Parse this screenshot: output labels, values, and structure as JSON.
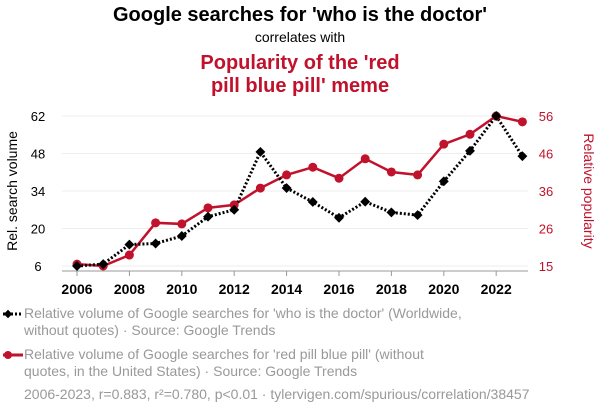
{
  "chart_data": {
    "type": "line",
    "title": "Google searches for 'who is the doctor'",
    "subtitle": "correlates with",
    "title2": [
      "Popularity of the 'red",
      "pill blue pill' meme"
    ],
    "x": [
      2006,
      2007,
      2008,
      2009,
      2010,
      2011,
      2012,
      2013,
      2014,
      2015,
      2016,
      2017,
      2018,
      2019,
      2020,
      2021,
      2022,
      2023
    ],
    "xticks": [
      "2006",
      "2008",
      "2010",
      "2012",
      "2014",
      "2016",
      "2018",
      "2020",
      "2022"
    ],
    "ylabel": "Rel. search volume",
    "y2label": "Relative popularity",
    "yticks": [
      "6",
      "20",
      "34",
      "48",
      "62"
    ],
    "y2ticks": [
      "15",
      "26",
      "36",
      "46",
      "56"
    ],
    "ylim": [
      6,
      62
    ],
    "y2lim": [
      15,
      56
    ],
    "grid": true,
    "series": [
      {
        "name": "Relative volume of Google searches for 'who is the doctor' (Worldwide, without quotes) · Source: Google Trends",
        "axis": "left",
        "color": "#000000",
        "values": [
          6,
          6.7,
          14,
          14.4,
          17.2,
          24.4,
          27,
          48.6,
          35.1,
          29.9,
          24,
          30,
          26,
          25,
          37.6,
          49,
          62,
          47
        ]
      },
      {
        "name": "Relative volume of Google searches for 'red pill blue pill' (without quotes, in the United States) · Source: Google Trends",
        "axis": "right",
        "color": "#c0122c",
        "values": [
          15.5,
          15,
          18,
          26.8,
          26.5,
          30.9,
          31.7,
          36.3,
          39.9,
          42,
          39,
          44.3,
          40.7,
          39.9,
          48.3,
          51,
          56,
          54.4
        ]
      }
    ],
    "footer": "2006-2023, r=0.883, r²=0.780, p<0.01 · tylervigen.com/spurious/correlation/38457"
  }
}
